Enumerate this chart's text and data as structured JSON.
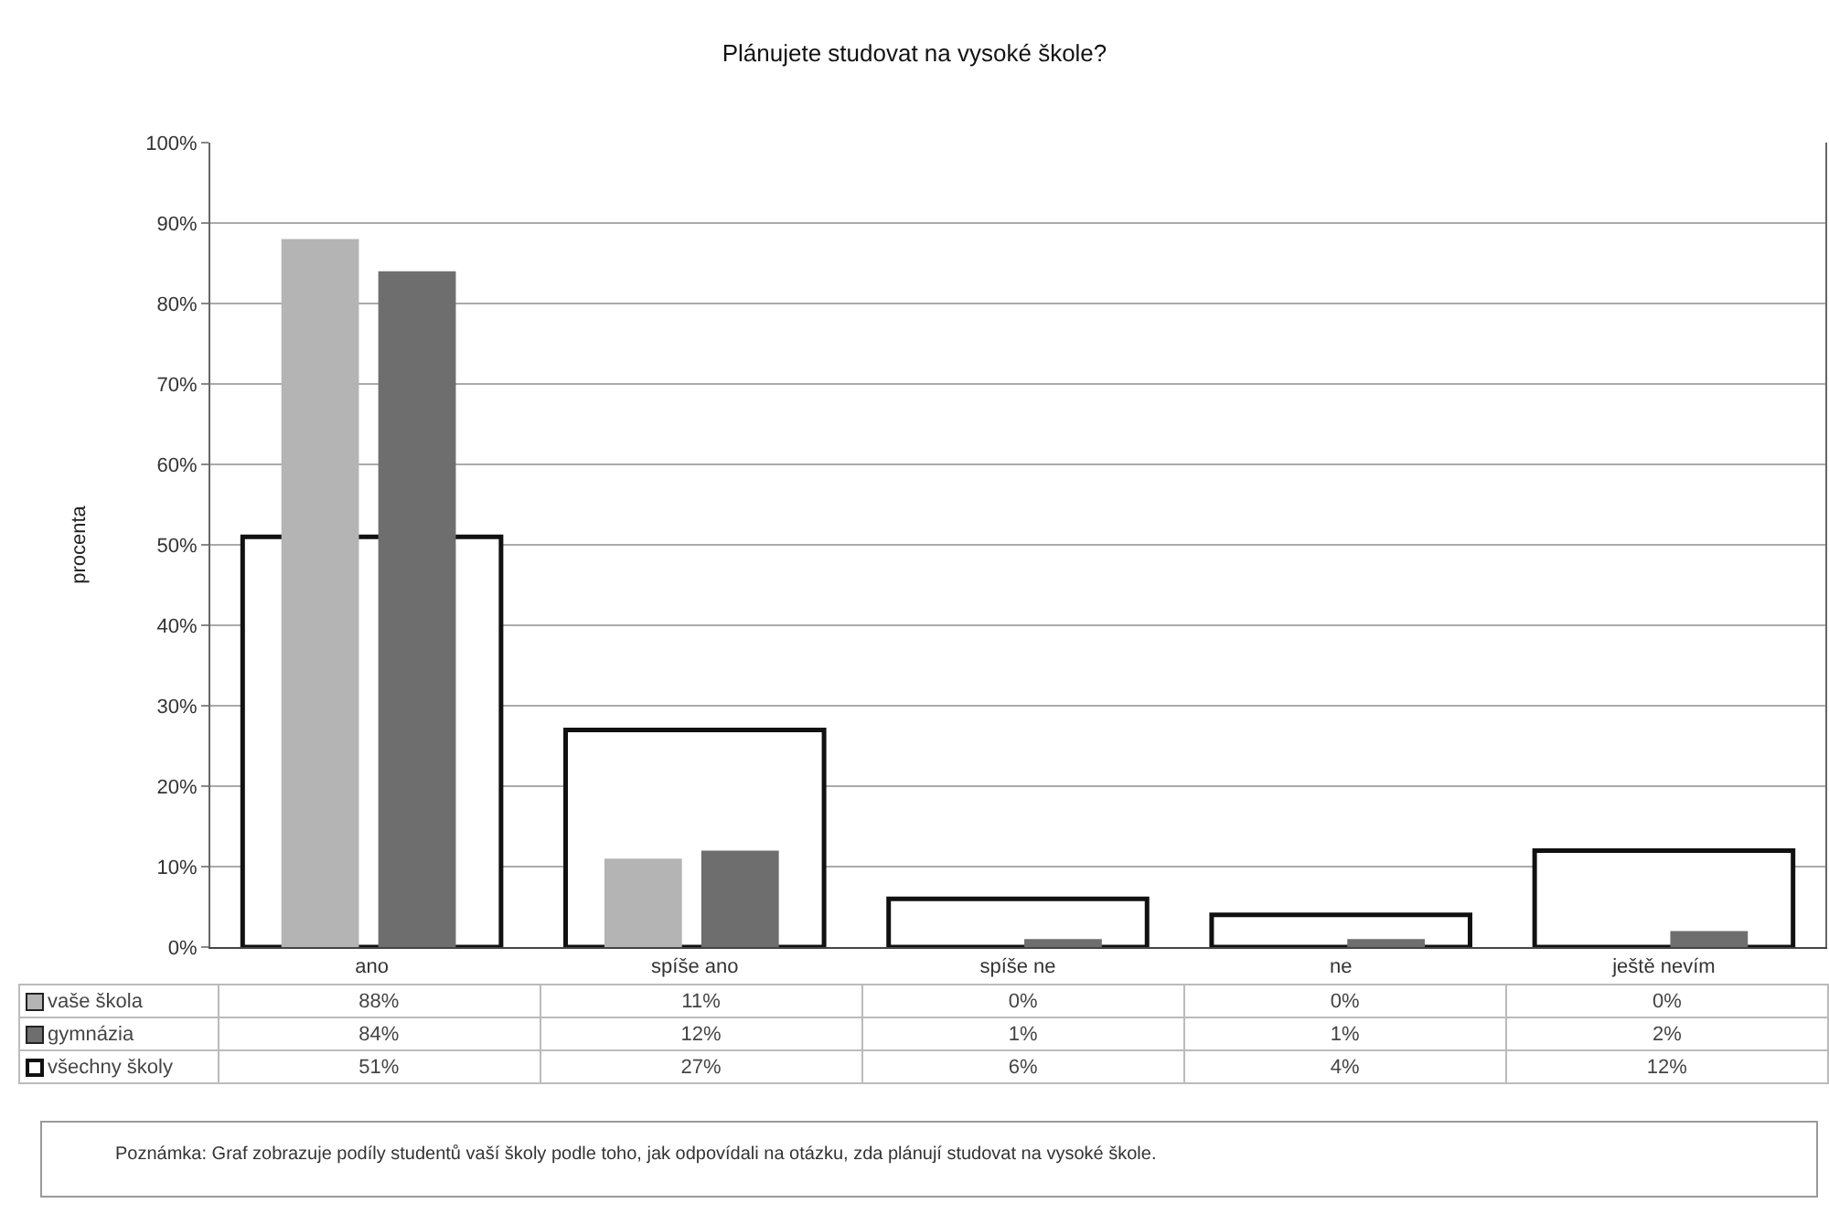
{
  "chart_data": {
    "type": "bar",
    "title": "Plánujete studovat na vysoké škole?",
    "ylabel": "procenta",
    "categories": [
      "ano",
      "spíše ano",
      "spíše ne",
      "ne",
      "ještě nevím"
    ],
    "series": [
      {
        "name": "všechny školy",
        "color": "#ffffff",
        "values": [
          51,
          27,
          6,
          4,
          12
        ],
        "value_labels": [
          "51%",
          "27%",
          "6%",
          "4%",
          "12%"
        ]
      },
      {
        "name": "vaše škola",
        "color": "#b4b4b4",
        "values": [
          88,
          11,
          0,
          0,
          0
        ],
        "value_labels": [
          "88%",
          "11%",
          "0%",
          "0%",
          "0%"
        ]
      },
      {
        "name": "gymnázia",
        "color": "#6e6e6e",
        "values": [
          84,
          12,
          1,
          1,
          2
        ],
        "value_labels": [
          "84%",
          "12%",
          "1%",
          "1%",
          "2%"
        ]
      }
    ],
    "ylim": [
      0,
      100
    ],
    "yticks": [
      {
        "value": 0,
        "label": "0%"
      },
      {
        "value": 10,
        "label": "10%"
      },
      {
        "value": 20,
        "label": "20%"
      },
      {
        "value": 30,
        "label": "30%"
      },
      {
        "value": 40,
        "label": "40%"
      },
      {
        "value": 50,
        "label": "50%"
      },
      {
        "value": 60,
        "label": "60%"
      },
      {
        "value": 70,
        "label": "70%"
      },
      {
        "value": 80,
        "label": "80%"
      },
      {
        "value": 90,
        "label": "90%"
      },
      {
        "value": 100,
        "label": "100%"
      }
    ],
    "grid": "y",
    "legend": "bottom left",
    "annotations": [
      "Poznámka: Graf zobrazuje podíly studentů vaší školy podle toho, jak odpovídali na otázku, zda plánují studovat na vysoké škole."
    ]
  }
}
